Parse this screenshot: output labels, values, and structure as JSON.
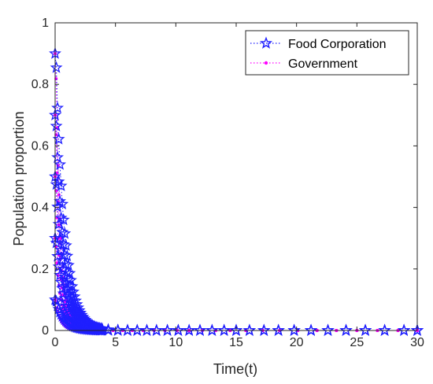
{
  "chart_data": {
    "type": "line",
    "xlabel": "Time(t)",
    "ylabel": "Population proportion",
    "xlim": [
      0,
      30
    ],
    "ylim": [
      0,
      1
    ],
    "xticks": [
      0,
      5,
      10,
      15,
      20,
      25,
      30
    ],
    "yticks": [
      0,
      0.2,
      0.4,
      0.6,
      0.8,
      1
    ],
    "ytick_labels": [
      "0",
      "0.2",
      "0.4",
      "0.6",
      "0.8",
      "1"
    ],
    "grid": false,
    "legend_position": "top-right",
    "series": [
      {
        "name": "Food Corporation",
        "color": "#1f1fff",
        "marker": "star",
        "line_style": "dotted",
        "initial_values": [
          0.1,
          0.3,
          0.5,
          0.7,
          0.9
        ],
        "decay_tail_end": 3.5
      },
      {
        "name": "Government",
        "color": "#ff00ff",
        "marker": "point",
        "line_style": "dotted",
        "initial_values": [
          0.1,
          0.3,
          0.5,
          0.7,
          0.9
        ],
        "decay_tail_end": 2
      }
    ]
  }
}
